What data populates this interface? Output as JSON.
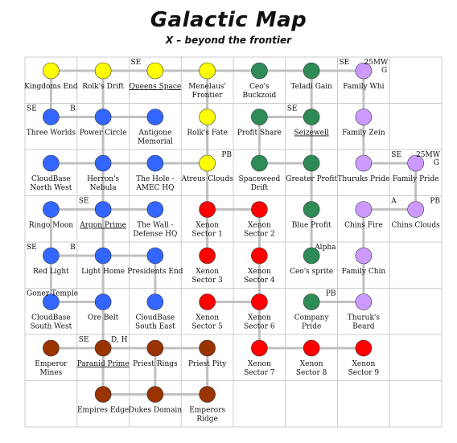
{
  "title": "Galactic Map",
  "subtitle": "X – beyond the frontier",
  "colors": {
    "grid": "#cccccc",
    "link": "#c0c0c0",
    "yellow": "#ffff00",
    "green": "#2e8b57",
    "purple": "#cc99ff",
    "blue": "#3366ff",
    "red": "#ff0000",
    "brown": "#993300"
  },
  "sectors": [
    {
      "id": "kingdoms-end",
      "row": 0,
      "col": 0,
      "color": "yellow",
      "lines": [
        "Kingdoms End"
      ],
      "tl": "",
      "tr": ""
    },
    {
      "id": "rolks-drift",
      "row": 0,
      "col": 1,
      "color": "yellow",
      "lines": [
        "Rolk's Drift"
      ],
      "tl": "",
      "tr": ""
    },
    {
      "id": "queens-space",
      "row": 0,
      "col": 2,
      "color": "yellow",
      "lines": [
        "Queens Space"
      ],
      "underline": true,
      "tl": "SE",
      "tr": ""
    },
    {
      "id": "menelaus-frontier",
      "row": 0,
      "col": 3,
      "color": "yellow",
      "lines": [
        "Menelaus'",
        "Frontier"
      ],
      "tl": "",
      "tr": ""
    },
    {
      "id": "ceos-buckzoid",
      "row": 0,
      "col": 4,
      "color": "green",
      "lines": [
        "Ceo's",
        "Buckzoid"
      ],
      "tl": "",
      "tr": ""
    },
    {
      "id": "teladi-gain",
      "row": 0,
      "col": 5,
      "color": "green",
      "lines": [
        "Teladi Gain"
      ],
      "tl": "",
      "tr": ""
    },
    {
      "id": "family-whi",
      "row": 0,
      "col": 6,
      "color": "purple",
      "lines": [
        "Family Whi"
      ],
      "tl": "SE",
      "tr": "25MW",
      "tr2": "G"
    },
    {
      "id": "three-worlds",
      "row": 1,
      "col": 0,
      "color": "blue",
      "lines": [
        "Three Worlds"
      ],
      "tl": "SE",
      "tr": "B"
    },
    {
      "id": "power-circle",
      "row": 1,
      "col": 1,
      "color": "blue",
      "lines": [
        "Power Circle"
      ],
      "tl": "",
      "tr": ""
    },
    {
      "id": "antigone-memorial",
      "row": 1,
      "col": 2,
      "color": "blue",
      "lines": [
        "Antigone",
        "Memorial"
      ],
      "tl": "",
      "tr": ""
    },
    {
      "id": "rolks-fate",
      "row": 1,
      "col": 3,
      "color": "yellow",
      "lines": [
        "Rolk's Fate"
      ],
      "tl": "",
      "tr": ""
    },
    {
      "id": "profit-share",
      "row": 1,
      "col": 4,
      "color": "green",
      "lines": [
        "Profit Share"
      ],
      "tl": "",
      "tr": ""
    },
    {
      "id": "seizewell",
      "row": 1,
      "col": 5,
      "color": "green",
      "lines": [
        "Seizewell"
      ],
      "underline": true,
      "tl": "SE",
      "tr": ""
    },
    {
      "id": "family-zein",
      "row": 1,
      "col": 6,
      "color": "purple",
      "lines": [
        "Family Zein"
      ],
      "tl": "",
      "tr": ""
    },
    {
      "id": "cloudbase-nw",
      "row": 2,
      "col": 0,
      "color": "blue",
      "lines": [
        "CloudBase",
        "North West"
      ],
      "tl": "",
      "tr": ""
    },
    {
      "id": "herrons-nebula",
      "row": 2,
      "col": 1,
      "color": "blue",
      "lines": [
        "Herron's",
        "Nebula"
      ],
      "tl": "",
      "tr": ""
    },
    {
      "id": "the-hole",
      "row": 2,
      "col": 2,
      "color": "blue",
      "lines": [
        "The Hole -",
        "AMEC HQ"
      ],
      "tl": "",
      "tr": ""
    },
    {
      "id": "atreus-clouds",
      "row": 2,
      "col": 3,
      "color": "yellow",
      "lines": [
        "Atreus Clouds"
      ],
      "tl": "",
      "tr": "PB"
    },
    {
      "id": "spaceweed-drift",
      "row": 2,
      "col": 4,
      "color": "green",
      "lines": [
        "Spaceweed",
        "Drift"
      ],
      "tl": "",
      "tr": ""
    },
    {
      "id": "greater-profit",
      "row": 2,
      "col": 5,
      "color": "green",
      "lines": [
        "Greater Profit"
      ],
      "tl": "",
      "tr": ""
    },
    {
      "id": "thuruks-pride",
      "row": 2,
      "col": 6,
      "color": "purple",
      "lines": [
        "Thuruks Pride"
      ],
      "tl": "",
      "tr": ""
    },
    {
      "id": "family-pride",
      "row": 2,
      "col": 7,
      "color": "purple",
      "lines": [
        "Family Pride"
      ],
      "tl": "SE",
      "tr": "25MW",
      "tr2": "G"
    },
    {
      "id": "ringo-moon",
      "row": 3,
      "col": 0,
      "color": "blue",
      "lines": [
        "Ringo Moon"
      ],
      "tl": "",
      "tr": ""
    },
    {
      "id": "argon-prime",
      "row": 3,
      "col": 1,
      "color": "blue",
      "lines": [
        "Argon Prime"
      ],
      "underline": true,
      "tl": "SE",
      "tr": ""
    },
    {
      "id": "the-wall",
      "row": 3,
      "col": 2,
      "color": "blue",
      "lines": [
        "The Wall -",
        "Defense HQ"
      ],
      "tl": "",
      "tr": ""
    },
    {
      "id": "xenon-1",
      "row": 3,
      "col": 3,
      "color": "red",
      "lines": [
        "Xenon",
        "Sector 1"
      ],
      "tl": "",
      "tr": ""
    },
    {
      "id": "xenon-2",
      "row": 3,
      "col": 4,
      "color": "red",
      "lines": [
        "Xenon",
        "Sector 2"
      ],
      "tl": "",
      "tr": ""
    },
    {
      "id": "blue-profit",
      "row": 3,
      "col": 5,
      "color": "green",
      "lines": [
        "Blue Profit"
      ],
      "tl": "",
      "tr": ""
    },
    {
      "id": "chins-fire",
      "row": 3,
      "col": 6,
      "color": "purple",
      "lines": [
        "Chins Fire"
      ],
      "tl": "",
      "tr": ""
    },
    {
      "id": "chins-clouds",
      "row": 3,
      "col": 7,
      "color": "purple",
      "lines": [
        "Chins Clouds"
      ],
      "tl": "A",
      "tr": "PB"
    },
    {
      "id": "red-light",
      "row": 4,
      "col": 0,
      "color": "blue",
      "lines": [
        "Red Light"
      ],
      "tl": "SE",
      "tr": "B"
    },
    {
      "id": "light-home",
      "row": 4,
      "col": 1,
      "color": "blue",
      "lines": [
        "Light Home"
      ],
      "tl": "",
      "tr": ""
    },
    {
      "id": "presidents-end",
      "row": 4,
      "col": 2,
      "color": "blue",
      "lines": [
        "Presidents End"
      ],
      "tl": "",
      "tr": ""
    },
    {
      "id": "xenon-3",
      "row": 4,
      "col": 3,
      "color": "red",
      "lines": [
        "Xenon",
        "Sector 3"
      ],
      "tl": "",
      "tr": ""
    },
    {
      "id": "xenon-4",
      "row": 4,
      "col": 4,
      "color": "red",
      "lines": [
        "Xenon",
        "Sector 4"
      ],
      "tl": "",
      "tr": ""
    },
    {
      "id": "ceos-sprite",
      "row": 4,
      "col": 5,
      "color": "green",
      "lines": [
        "Ceo's sprite"
      ],
      "tl": "",
      "tr": "Alpha"
    },
    {
      "id": "family-chin",
      "row": 4,
      "col": 6,
      "color": "purple",
      "lines": [
        "Family Chin"
      ],
      "tl": "",
      "tr": ""
    },
    {
      "id": "cloudbase-sw",
      "row": 5,
      "col": 0,
      "color": "blue",
      "lines": [
        "CloudBase",
        "South West"
      ],
      "tl": "Goner Temple",
      "tr": ""
    },
    {
      "id": "ore-belt",
      "row": 5,
      "col": 1,
      "color": "blue",
      "lines": [
        "Ore Belt"
      ],
      "tl": "",
      "tr": ""
    },
    {
      "id": "cloudbase-se",
      "row": 5,
      "col": 2,
      "color": "blue",
      "lines": [
        "CloudBase",
        "South East"
      ],
      "tl": "",
      "tr": ""
    },
    {
      "id": "xenon-5",
      "row": 5,
      "col": 3,
      "color": "red",
      "lines": [
        "Xenon",
        "Sector 5"
      ],
      "tl": "",
      "tr": ""
    },
    {
      "id": "xenon-6",
      "row": 5,
      "col": 4,
      "color": "red",
      "lines": [
        "Xenon",
        "Sector 6"
      ],
      "tl": "",
      "tr": ""
    },
    {
      "id": "company-pride",
      "row": 5,
      "col": 5,
      "color": "green",
      "lines": [
        "Company",
        "Pride"
      ],
      "tl": "",
      "tr": "PB"
    },
    {
      "id": "thuruks-beard",
      "row": 5,
      "col": 6,
      "color": "purple",
      "lines": [
        "Thuruk's",
        "Beard"
      ],
      "tl": "",
      "tr": ""
    },
    {
      "id": "emperor-mines",
      "row": 6,
      "col": 0,
      "color": "brown",
      "lines": [
        "Emperor",
        "Mines"
      ],
      "tl": "",
      "tr": ""
    },
    {
      "id": "paranid-prime",
      "row": 6,
      "col": 1,
      "color": "brown",
      "lines": [
        "Paranid Prime"
      ],
      "underline": true,
      "tl": "SE",
      "tr": "D, H"
    },
    {
      "id": "priest-rings",
      "row": 6,
      "col": 2,
      "color": "brown",
      "lines": [
        "Priest Rings"
      ],
      "tl": "",
      "tr": ""
    },
    {
      "id": "priest-pity",
      "row": 6,
      "col": 3,
      "color": "brown",
      "lines": [
        "Priest Pity"
      ],
      "tl": "",
      "tr": ""
    },
    {
      "id": "xenon-7",
      "row": 6,
      "col": 4,
      "color": "red",
      "lines": [
        "Xenon",
        "Sector 7"
      ],
      "tl": "",
      "tr": ""
    },
    {
      "id": "xenon-8",
      "row": 6,
      "col": 5,
      "color": "red",
      "lines": [
        "Xenon",
        "Sector 8"
      ],
      "tl": "",
      "tr": ""
    },
    {
      "id": "xenon-9",
      "row": 6,
      "col": 6,
      "color": "red",
      "lines": [
        "Xenon",
        "Sector 9"
      ],
      "tl": "",
      "tr": ""
    },
    {
      "id": "empires-edge",
      "row": 7,
      "col": 1,
      "color": "brown",
      "lines": [
        "Empires Edge"
      ],
      "tl": "",
      "tr": ""
    },
    {
      "id": "dukes-domain",
      "row": 7,
      "col": 2,
      "color": "brown",
      "lines": [
        "Dukes Domain"
      ],
      "tl": "",
      "tr": ""
    },
    {
      "id": "emperors-ridge",
      "row": 7,
      "col": 3,
      "color": "brown",
      "lines": [
        "Emperors",
        "Ridge"
      ],
      "tl": "",
      "tr": ""
    }
  ],
  "links": [
    [
      "kingdoms-end",
      "rolks-drift"
    ],
    [
      "rolks-drift",
      "queens-space"
    ],
    [
      "queens-space",
      "menelaus-frontier"
    ],
    [
      "menelaus-frontier",
      "ceos-buckzoid"
    ],
    [
      "ceos-buckzoid",
      "teladi-gain"
    ],
    [
      "teladi-gain",
      "family-whi"
    ],
    [
      "kingdoms-end",
      "three-worlds"
    ],
    [
      "rolks-drift",
      "power-circle"
    ],
    [
      "menelaus-frontier",
      "rolks-fate"
    ],
    [
      "teladi-gain",
      "seizewell"
    ],
    [
      "family-whi",
      "family-zein"
    ],
    [
      "three-worlds",
      "power-circle"
    ],
    [
      "power-circle",
      "antigone-memorial"
    ],
    [
      "profit-share",
      "seizewell"
    ],
    [
      "power-circle",
      "herrons-nebula"
    ],
    [
      "rolks-fate",
      "atreus-clouds"
    ],
    [
      "profit-share",
      "spaceweed-drift"
    ],
    [
      "seizewell",
      "greater-profit"
    ],
    [
      "family-zein",
      "thuruks-pride"
    ],
    [
      "cloudbase-nw",
      "herrons-nebula"
    ],
    [
      "herrons-nebula",
      "the-hole"
    ],
    [
      "the-hole",
      "atreus-clouds"
    ],
    [
      "spaceweed-drift",
      "greater-profit"
    ],
    [
      "thuruks-pride",
      "family-pride"
    ],
    [
      "herrons-nebula",
      "argon-prime"
    ],
    [
      "atreus-clouds",
      "xenon-1"
    ],
    [
      "greater-profit",
      "blue-profit"
    ],
    [
      "family-pride",
      "chins-clouds"
    ],
    [
      "ringo-moon",
      "argon-prime"
    ],
    [
      "argon-prime",
      "the-wall"
    ],
    [
      "xenon-1",
      "xenon-2"
    ],
    [
      "chins-fire",
      "chins-clouds"
    ],
    [
      "ringo-moon",
      "red-light"
    ],
    [
      "argon-prime",
      "light-home"
    ],
    [
      "xenon-1",
      "xenon-3"
    ],
    [
      "xenon-2",
      "xenon-4"
    ],
    [
      "blue-profit",
      "ceos-sprite"
    ],
    [
      "chins-fire",
      "family-chin"
    ],
    [
      "red-light",
      "light-home"
    ],
    [
      "light-home",
      "presidents-end"
    ],
    [
      "red-light",
      "cloudbase-sw"
    ],
    [
      "light-home",
      "ore-belt"
    ],
    [
      "presidents-end",
      "cloudbase-se"
    ],
    [
      "xenon-4",
      "xenon-6"
    ],
    [
      "family-chin",
      "thuruks-beard"
    ],
    [
      "cloudbase-sw",
      "ore-belt"
    ],
    [
      "xenon-5",
      "xenon-6"
    ],
    [
      "company-pride",
      "thuruks-beard"
    ],
    [
      "ore-belt",
      "paranid-prime"
    ],
    [
      "xenon-6",
      "xenon-7"
    ],
    [
      "emperor-mines",
      "paranid-prime"
    ],
    [
      "paranid-prime",
      "priest-rings"
    ],
    [
      "priest-rings",
      "priest-pity"
    ],
    [
      "xenon-7",
      "xenon-8"
    ],
    [
      "xenon-8",
      "xenon-9"
    ],
    [
      "paranid-prime",
      "empires-edge"
    ],
    [
      "priest-rings",
      "dukes-domain"
    ],
    [
      "priest-pity",
      "emperors-ridge"
    ],
    [
      "empires-edge",
      "dukes-domain"
    ],
    [
      "dukes-domain",
      "emperors-ridge"
    ]
  ]
}
